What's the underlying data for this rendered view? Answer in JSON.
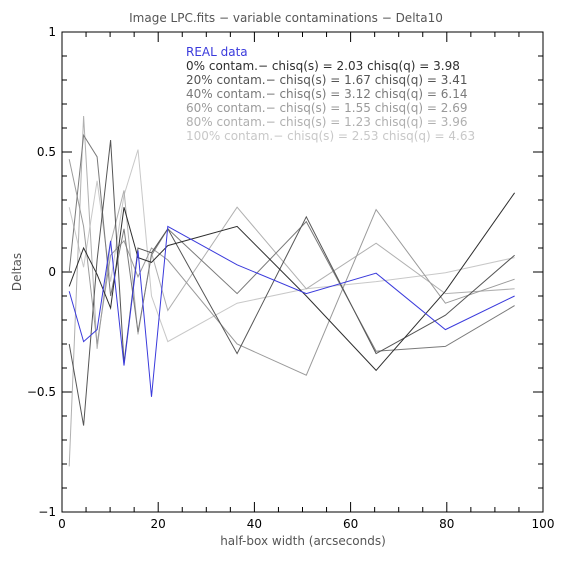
{
  "chart_data": {
    "type": "line",
    "title": "Image LPC.fits − variable contaminations − Delta10",
    "xlabel": "half-box width (arcseconds)",
    "ylabel": "Deltas",
    "xlim": [
      0,
      100
    ],
    "ylim": [
      -1,
      1
    ],
    "xticks": [
      0,
      20,
      40,
      60,
      80,
      100
    ],
    "yticks": [
      -1,
      -0.5,
      0,
      0.5,
      1
    ],
    "xtick_labels": [
      "0",
      "20",
      "40",
      "60",
      "80",
      "100"
    ],
    "ytick_labels": [
      "−1",
      "−0.5",
      "0",
      "0.5",
      "1"
    ],
    "grid": false,
    "legend_position": "top-center",
    "series": [
      {
        "name": "REAL data",
        "legend": "REAL data",
        "color": "#3a3adc",
        "x": [
          1.5,
          4.5,
          7.3,
          10.1,
          12.9,
          15.8,
          18.6,
          22.0,
          36.4,
          50.8,
          65.3,
          79.7,
          94.1
        ],
        "y": [
          -0.08,
          -0.29,
          -0.24,
          0.13,
          -0.39,
          0.09,
          -0.52,
          0.19,
          0.03,
          -0.09,
          -0.005,
          -0.24,
          -0.1
        ]
      },
      {
        "name": "0% contam.",
        "legend": "0% contam.− chisq(s) = 2.03 chisq(q) = 3.98",
        "color": "#2e2e2e",
        "x": [
          1.5,
          4.5,
          7.3,
          10.1,
          12.9,
          15.8,
          18.6,
          22.0,
          36.4,
          50.8,
          65.3,
          79.7,
          94.1
        ],
        "y": [
          -0.06,
          0.1,
          -0.01,
          -0.15,
          0.27,
          0.06,
          0.04,
          0.11,
          0.19,
          -0.1,
          -0.41,
          -0.08,
          0.33
        ]
      },
      {
        "name": "20% contam.",
        "legend": "20% contam.− chisq(s) = 1.67 chisq(q) = 3.41",
        "color": "#555555",
        "x": [
          1.5,
          4.5,
          7.3,
          10.1,
          12.9,
          15.8,
          18.6,
          22.0,
          36.4,
          50.8,
          65.3,
          79.7,
          94.1
        ],
        "y": [
          -0.3,
          -0.64,
          0.05,
          0.55,
          -0.38,
          0.1,
          0.08,
          0.18,
          -0.34,
          0.23,
          -0.34,
          -0.18,
          0.07
        ]
      },
      {
        "name": "40% contam.",
        "legend": "40% contam.− chisq(s) = 3.12 chisq(q) = 6.14",
        "color": "#7a7a7a",
        "x": [
          1.5,
          4.5,
          7.3,
          10.1,
          12.9,
          15.8,
          18.6,
          22.0,
          36.4,
          50.8,
          65.3,
          79.7,
          94.1
        ],
        "y": [
          0.0,
          0.57,
          0.48,
          -0.1,
          0.18,
          -0.25,
          0.07,
          0.18,
          -0.09,
          0.21,
          -0.33,
          -0.31,
          -0.14
        ]
      },
      {
        "name": "60% contam.",
        "legend": "60% contam.− chisq(s) = 1.55 chisq(q) = 2.69",
        "color": "#9a9a9a",
        "x": [
          1.5,
          4.5,
          7.3,
          10.1,
          12.9,
          15.8,
          18.6,
          22.0,
          36.4,
          50.8,
          65.3,
          79.7,
          94.1
        ],
        "y": [
          0.47,
          0.19,
          -0.3,
          0.07,
          0.13,
          -0.02,
          0.1,
          0.05,
          -0.3,
          -0.43,
          0.26,
          -0.13,
          -0.03
        ]
      },
      {
        "name": "80% contam.",
        "legend": "80% contam.− chisq(s) = 1.23 chisq(q) = 3.96",
        "color": "#b0b0b0",
        "x": [
          1.5,
          4.5,
          7.3,
          10.1,
          12.9,
          15.8,
          18.6,
          22.0,
          36.4,
          50.8,
          65.3,
          79.7,
          94.1
        ],
        "y": [
          -0.81,
          0.65,
          -0.32,
          0.12,
          0.34,
          -0.26,
          0.08,
          -0.16,
          0.27,
          -0.07,
          0.12,
          -0.09,
          -0.07
        ]
      },
      {
        "name": "100% contam.",
        "legend": "100% contam.− chisq(s) = 2.53 chisq(q) = 4.63",
        "color": "#c8c8c8",
        "x": [
          1.5,
          4.5,
          7.3,
          10.1,
          12.9,
          15.8,
          18.6,
          22.0,
          36.4,
          50.8,
          65.3,
          79.7,
          94.1
        ],
        "y": [
          0.27,
          0.02,
          0.38,
          -0.04,
          0.32,
          0.51,
          -0.1,
          -0.29,
          -0.13,
          -0.07,
          -0.04,
          -0.003,
          0.06
        ]
      }
    ]
  }
}
